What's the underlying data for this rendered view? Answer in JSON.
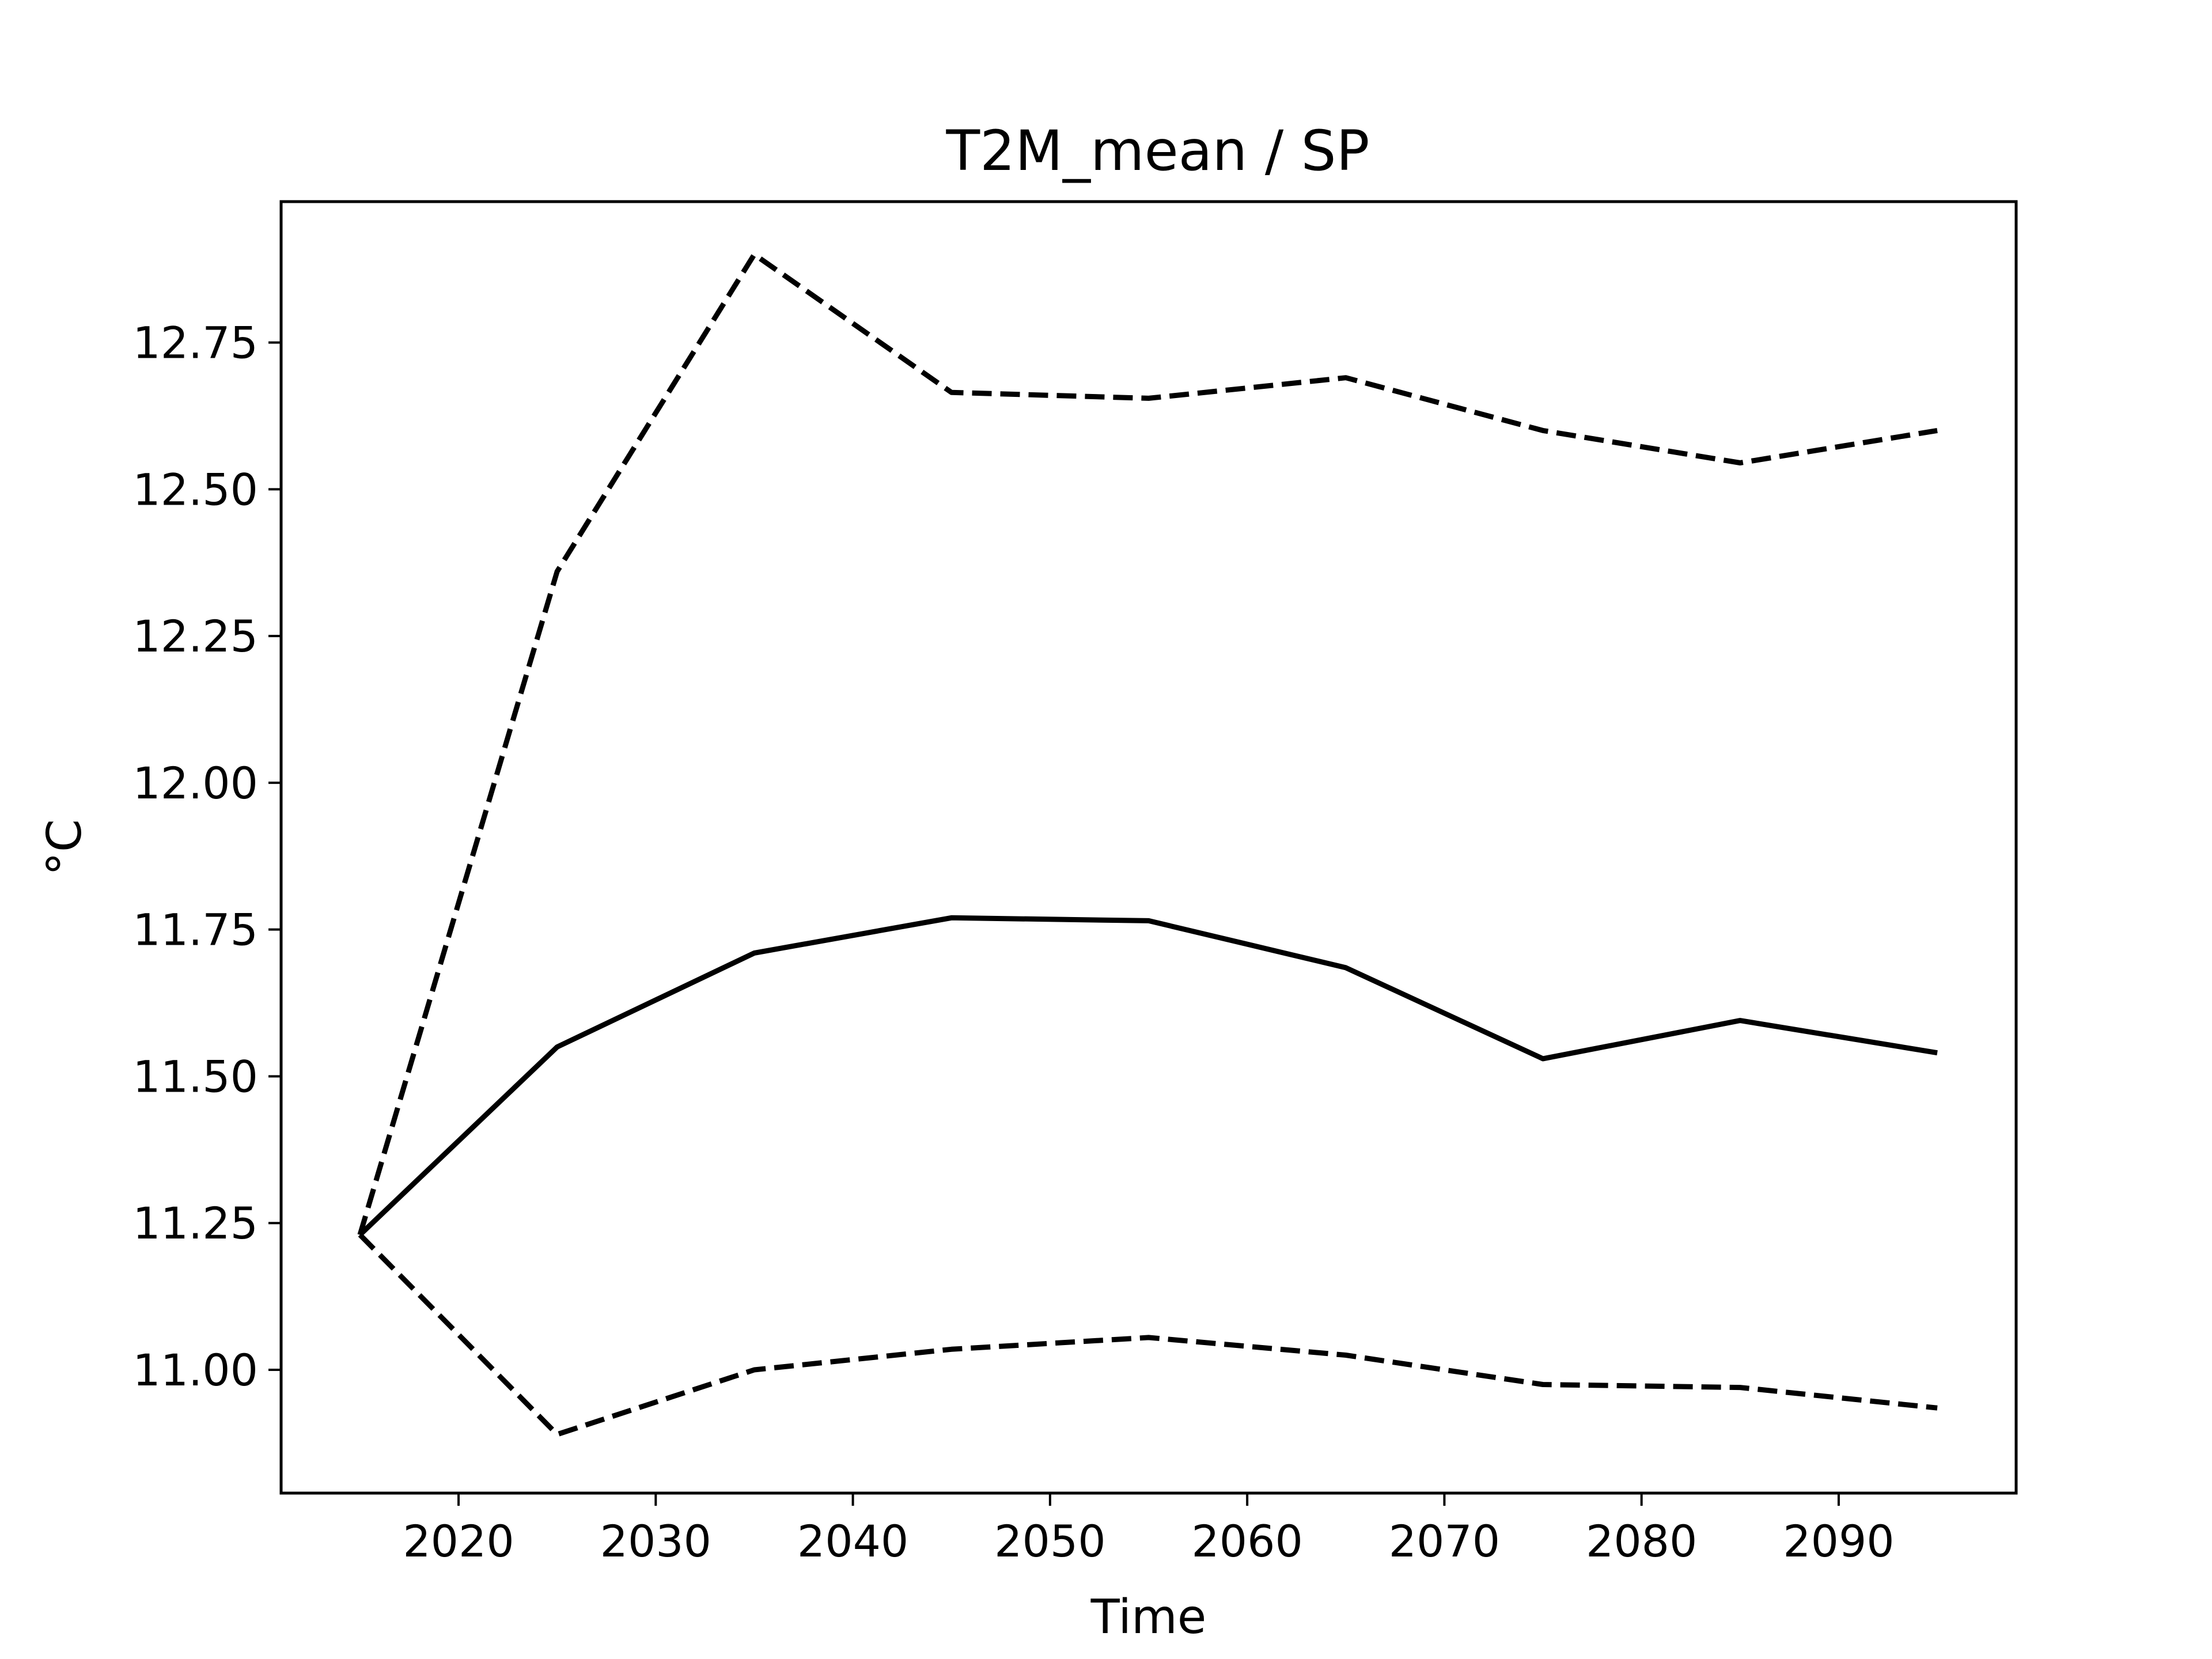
{
  "chart_data": {
    "type": "line",
    "title": "T2M_mean / SP",
    "xlabel": "Time",
    "ylabel": "°C",
    "x": [
      2015,
      2025,
      2035,
      2045,
      2055,
      2065,
      2075,
      2085,
      2095
    ],
    "series": [
      {
        "style": "solid",
        "values": [
          11.23,
          11.55,
          11.71,
          11.77,
          11.765,
          11.685,
          11.53,
          11.595,
          11.54
        ]
      },
      {
        "style": "dashed",
        "values": [
          11.23,
          12.36,
          12.9,
          12.665,
          12.655,
          12.69,
          12.6,
          12.545,
          12.6
        ]
      },
      {
        "style": "dashed",
        "values": [
          11.23,
          10.89,
          11.0,
          11.035,
          11.055,
          11.025,
          10.975,
          10.97,
          10.935
        ]
      }
    ],
    "xlim": [
      2011,
      2099
    ],
    "ylim": [
      10.79,
      12.99
    ],
    "xticks": [
      "2020",
      "2030",
      "2040",
      "2050",
      "2060",
      "2070",
      "2080",
      "2090"
    ],
    "yticks": [
      "11.00",
      "11.25",
      "11.50",
      "11.75",
      "12.00",
      "12.25",
      "12.50",
      "12.75"
    ],
    "grid": false,
    "colors": {
      "line": "#000000",
      "axes": "#000000",
      "background": "#ffffff"
    }
  }
}
